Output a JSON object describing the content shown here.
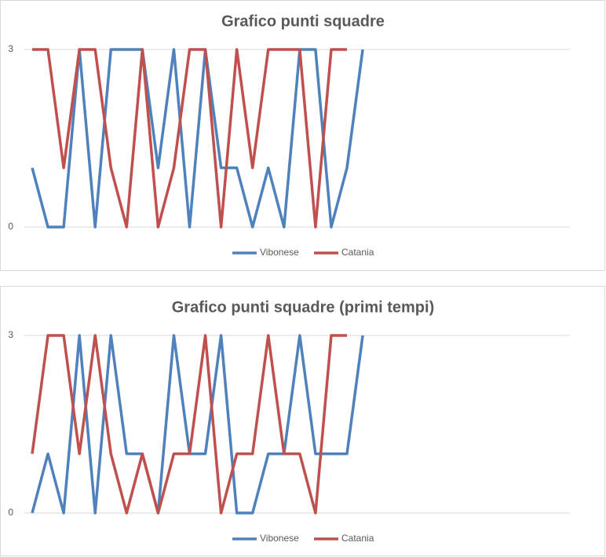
{
  "chart_data": [
    {
      "type": "line",
      "title": "Grafico punti squadre",
      "categories": [
        null,
        null,
        null,
        null,
        null,
        null,
        null,
        null,
        null,
        null,
        null,
        null,
        null,
        null,
        null,
        null,
        null,
        null,
        null,
        null,
        null,
        null
      ],
      "series": [
        {
          "name": "Vibonese",
          "color": "#4f81bd",
          "values": [
            1,
            0,
            0,
            3,
            0,
            3,
            3,
            3,
            1,
            3,
            0,
            3,
            1,
            1,
            0,
            1,
            0,
            3,
            3,
            0,
            1,
            3
          ]
        },
        {
          "name": "Catania",
          "color": "#c0504d",
          "values": [
            3,
            3,
            1,
            3,
            3,
            1,
            0,
            3,
            0,
            1,
            3,
            3,
            0,
            3,
            1,
            3,
            3,
            3,
            0,
            3,
            3,
            null
          ]
        }
      ],
      "ylim": [
        0,
        3
      ],
      "yticks": [
        0,
        3
      ],
      "grid": true,
      "legend": "bottom"
    },
    {
      "type": "line",
      "title": "Grafico punti squadre (primi tempi)",
      "categories": [
        null,
        null,
        null,
        null,
        null,
        null,
        null,
        null,
        null,
        null,
        null,
        null,
        null,
        null,
        null,
        null,
        null,
        null,
        null,
        null,
        null,
        null
      ],
      "series": [
        {
          "name": "Vibonese",
          "color": "#4f81bd",
          "values": [
            0,
            1,
            0,
            3,
            0,
            3,
            1,
            1,
            0,
            3,
            1,
            1,
            3,
            0,
            0,
            1,
            1,
            3,
            1,
            1,
            1,
            3
          ]
        },
        {
          "name": "Catania",
          "color": "#c0504d",
          "values": [
            1,
            3,
            3,
            1,
            3,
            1,
            0,
            1,
            0,
            1,
            1,
            3,
            0,
            1,
            1,
            3,
            1,
            1,
            0,
            3,
            3,
            null
          ]
        }
      ],
      "ylim": [
        0,
        3
      ],
      "yticks": [
        0,
        3
      ],
      "grid": true,
      "legend": "bottom"
    }
  ]
}
